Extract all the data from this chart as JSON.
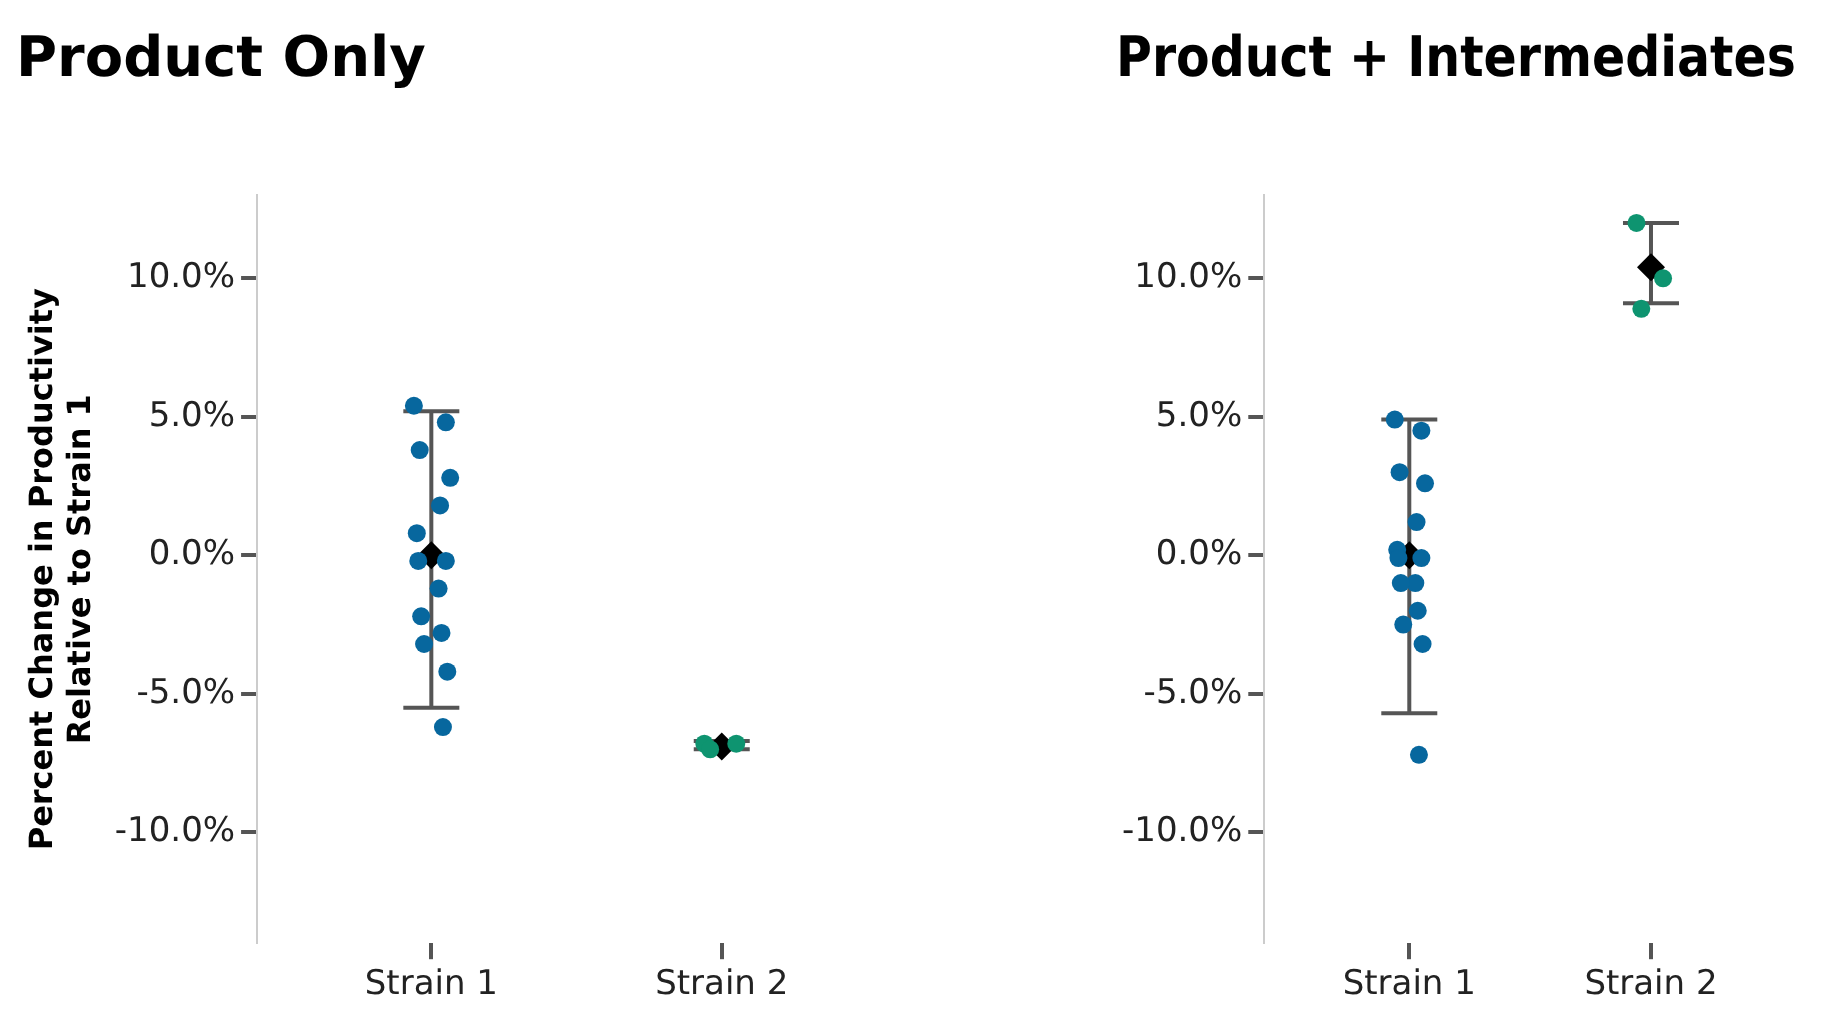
{
  "chart_data": [
    {
      "type": "scatter",
      "title": "Product Only",
      "ylabel": "Percent Change in Productivity\nRelative to Strain 1",
      "categories": [
        "Strain 1",
        "Strain 2"
      ],
      "ylim": [
        -14,
        13
      ],
      "yticks": [
        {
          "value": -10,
          "label": "-10.0%"
        },
        {
          "value": -5,
          "label": "-5.0%"
        },
        {
          "value": 0,
          "label": "0.0%"
        },
        {
          "value": 5,
          "label": "5.0%"
        },
        {
          "value": 10,
          "label": "10.0%"
        }
      ],
      "grid": false,
      "legend": false,
      "series": [
        {
          "color": "#07679e",
          "marker": "circle",
          "x": [
            "Strain 1",
            "Strain 1",
            "Strain 1",
            "Strain 1",
            "Strain 1",
            "Strain 1",
            "Strain 1",
            "Strain 1",
            "Strain 1",
            "Strain 1",
            "Strain 1",
            "Strain 1",
            "Strain 1",
            "Strain 1"
          ],
          "values": [
            5.4,
            4.8,
            3.8,
            2.8,
            1.8,
            0.8,
            -0.2,
            -0.2,
            -1.2,
            -2.2,
            -2.8,
            -3.2,
            -4.2,
            -6.2
          ]
        },
        {
          "color": "#0e9470",
          "marker": "circle",
          "x": [
            "Strain 2",
            "Strain 2",
            "Strain 2"
          ],
          "values": [
            -6.8,
            -6.8,
            -7.0
          ]
        },
        {
          "color": "#000000",
          "marker": "diamond",
          "x": [
            "Strain 1",
            "Strain 2"
          ],
          "values": [
            0,
            -6.9
          ],
          "errors": [
            [
              -5.5,
              5.2
            ],
            [
              -7.0,
              -6.7
            ]
          ]
        }
      ]
    },
    {
      "type": "scatter",
      "title": "Product + Intermediates",
      "categories": [
        "Strain 1",
        "Strain 2"
      ],
      "ylim": [
        -14,
        13
      ],
      "yticks": [
        {
          "value": -10,
          "label": "-10.0%"
        },
        {
          "value": -5,
          "label": "-5.0%"
        },
        {
          "value": 0,
          "label": "0.0%"
        },
        {
          "value": 5,
          "label": "5.0%"
        },
        {
          "value": 10,
          "label": "10.0%"
        }
      ],
      "grid": false,
      "legend": false,
      "series": [
        {
          "color": "#07679e",
          "marker": "circle",
          "x": [
            "Strain 1",
            "Strain 1",
            "Strain 1",
            "Strain 1",
            "Strain 1",
            "Strain 1",
            "Strain 1",
            "Strain 1",
            "Strain 1",
            "Strain 1",
            "Strain 1",
            "Strain 1",
            "Strain 1",
            "Strain 1"
          ],
          "values": [
            4.9,
            4.5,
            3.0,
            2.6,
            1.2,
            0.2,
            -0.1,
            -0.1,
            -1.0,
            -1.0,
            -2.0,
            -2.5,
            -3.2,
            -7.2
          ]
        },
        {
          "color": "#0e9470",
          "marker": "circle",
          "x": [
            "Strain 2",
            "Strain 2",
            "Strain 2"
          ],
          "values": [
            12.0,
            10.0,
            8.9
          ]
        },
        {
          "color": "#000000",
          "marker": "diamond",
          "x": [
            "Strain 1",
            "Strain 2"
          ],
          "values": [
            0,
            10.4
          ],
          "errors": [
            [
              -5.7,
              4.9
            ],
            [
              9.1,
              12.0
            ]
          ]
        }
      ]
    }
  ]
}
